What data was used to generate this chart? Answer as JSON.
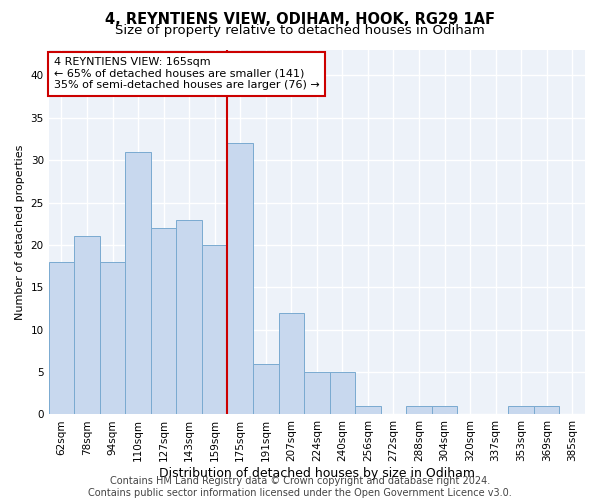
{
  "title_line1": "4, REYNTIENS VIEW, ODIHAM, HOOK, RG29 1AF",
  "title_line2": "Size of property relative to detached houses in Odiham",
  "xlabel": "Distribution of detached houses by size in Odiham",
  "ylabel": "Number of detached properties",
  "bins": [
    "62sqm",
    "78sqm",
    "94sqm",
    "110sqm",
    "127sqm",
    "143sqm",
    "159sqm",
    "175sqm",
    "191sqm",
    "207sqm",
    "224sqm",
    "240sqm",
    "256sqm",
    "272sqm",
    "288sqm",
    "304sqm",
    "320sqm",
    "337sqm",
    "353sqm",
    "369sqm",
    "385sqm"
  ],
  "values": [
    18,
    21,
    18,
    31,
    22,
    23,
    20,
    32,
    6,
    12,
    5,
    5,
    1,
    0,
    1,
    1,
    0,
    0,
    1,
    1,
    0
  ],
  "bar_color": "#c8d8ee",
  "bar_edge_color": "#7aaad0",
  "annotation_line1": "4 REYNTIENS VIEW: 165sqm",
  "annotation_line2": "← 65% of detached houses are smaller (141)",
  "annotation_line3": "35% of semi-detached houses are larger (76) →",
  "vline_color": "#cc0000",
  "annotation_box_color": "#ffffff",
  "annotation_box_edge": "#cc0000",
  "footer_line1": "Contains HM Land Registry data © Crown copyright and database right 2024.",
  "footer_line2": "Contains public sector information licensed under the Open Government Licence v3.0.",
  "ylim": [
    0,
    43
  ],
  "yticks": [
    0,
    5,
    10,
    15,
    20,
    25,
    30,
    35,
    40
  ],
  "background_color": "#edf2f9",
  "grid_color": "#ffffff",
  "title1_fontsize": 10.5,
  "title2_fontsize": 9.5,
  "xlabel_fontsize": 9,
  "ylabel_fontsize": 8,
  "tick_fontsize": 7.5,
  "footer_fontsize": 7,
  "annotation_fontsize": 8,
  "vline_x_bin_index": 7
}
